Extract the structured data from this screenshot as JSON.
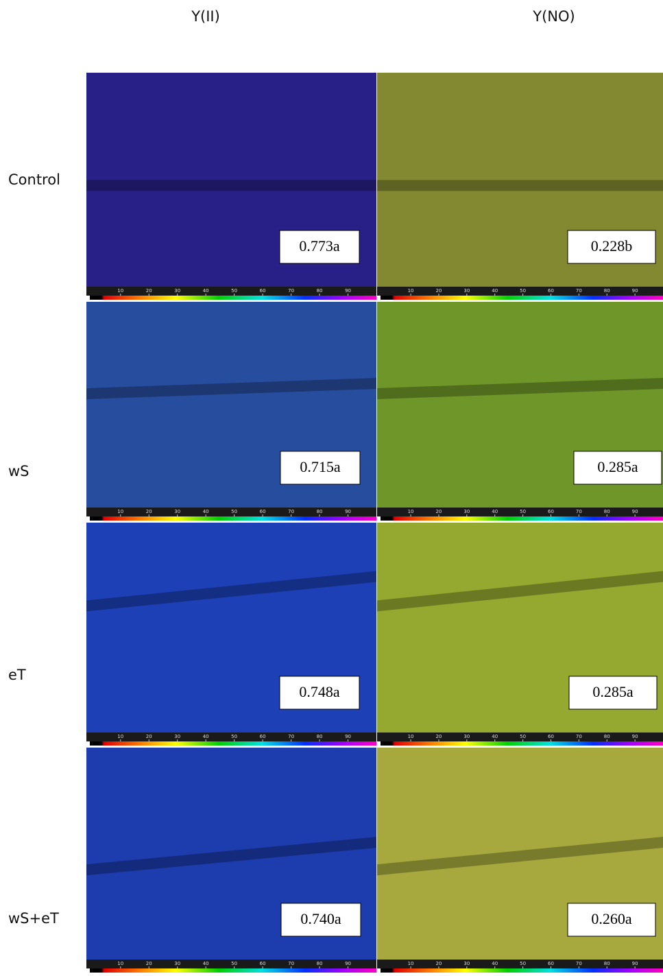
{
  "column_headers": [
    "Y(II)",
    "Y(NO)"
  ],
  "rows": [
    {
      "label": "Control",
      "cells": [
        "0.773a",
        "0.228b"
      ]
    },
    {
      "label": "wS",
      "cells": [
        "0.715a",
        "0.285a"
      ]
    },
    {
      "label": "eT",
      "cells": [
        "0.748a",
        "0.285a"
      ]
    },
    {
      "label": "wS+eT",
      "cells": [
        "0.740a",
        "0.260a"
      ]
    }
  ],
  "colorbar_ticks": [
    10,
    20,
    30,
    40,
    50,
    60,
    70,
    80,
    90
  ]
}
